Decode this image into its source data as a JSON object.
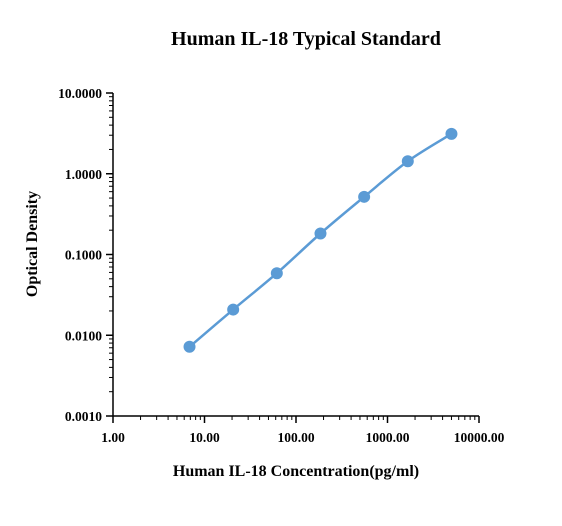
{
  "chart_data": {
    "type": "line",
    "title": "Human IL-18 Typical Standard",
    "xlabel": "Human IL-18 Concentration(pg/ml)",
    "ylabel": "Optical Density",
    "x_scale": "log",
    "y_scale": "log",
    "xlim": [
      1,
      10000
    ],
    "ylim": [
      0.001,
      10
    ],
    "x_ticks": [
      {
        "value": 1,
        "label": "1.00"
      },
      {
        "value": 10,
        "label": "10.00"
      },
      {
        "value": 100,
        "label": "100.00"
      },
      {
        "value": 1000,
        "label": "1000.00"
      },
      {
        "value": 10000,
        "label": "10000.00"
      }
    ],
    "y_ticks": [
      {
        "value": 0.001,
        "label": "0.0010"
      },
      {
        "value": 0.01,
        "label": "0.0100"
      },
      {
        "value": 0.1,
        "label": "0.1000"
      },
      {
        "value": 1,
        "label": "1.0000"
      },
      {
        "value": 10,
        "label": "10.0000"
      }
    ],
    "grid": false,
    "legend": "none",
    "series": [
      {
        "x": [
          6.86,
          20.58,
          61.73,
          185.19,
          555.56,
          1666.67,
          5000
        ],
        "y": [
          0.0072,
          0.0208,
          0.0586,
          0.182,
          0.518,
          1.43,
          3.12
        ],
        "color": "#5b9bd5"
      }
    ]
  }
}
